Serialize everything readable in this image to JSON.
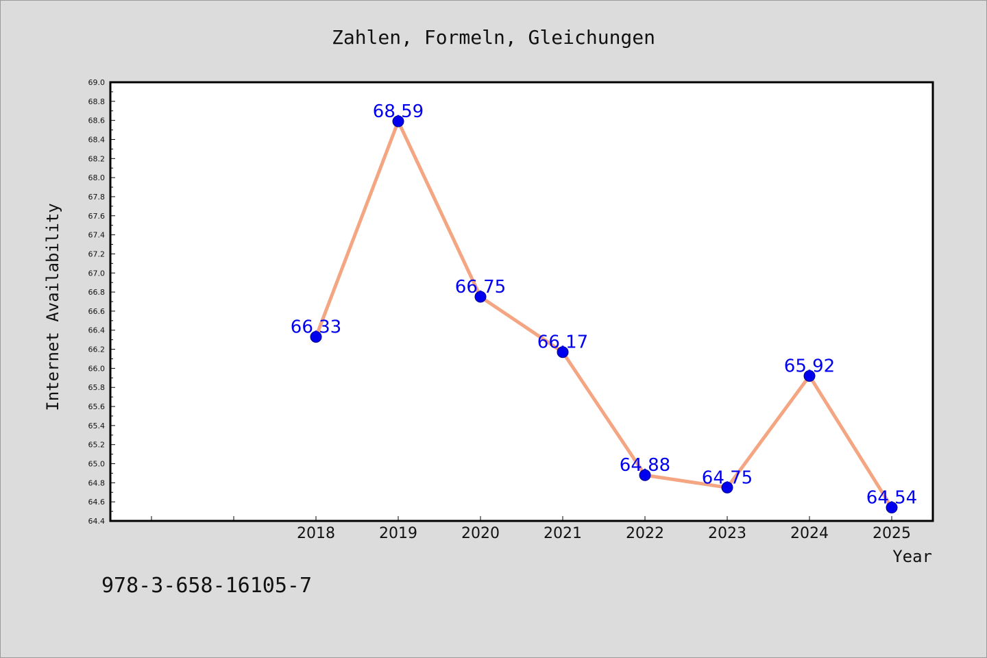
{
  "colors": {
    "background": "#dcdcdc",
    "plot_background": "#ffffff",
    "line": "#f4a582",
    "marker": "#0000ee",
    "data_label": "#0000ee"
  },
  "footer": {
    "isbn": "978-3-658-16105-7"
  },
  "chart_data": {
    "type": "line",
    "title": "Zahlen, Formeln, Gleichungen",
    "xlabel": "Year",
    "ylabel": "Internet Availability",
    "categories": [
      "",
      "",
      "2018",
      "2019",
      "2020",
      "2021",
      "2022",
      "2023",
      "2024",
      "2025"
    ],
    "x": [
      "2018",
      "2019",
      "2020",
      "2021",
      "2022",
      "2023",
      "2024",
      "2025"
    ],
    "series": [
      {
        "values": [
          66.33,
          68.59,
          66.75,
          66.17,
          64.88,
          64.75,
          65.92,
          64.54
        ]
      }
    ],
    "data_labels": [
      "66.33",
      "68.59",
      "66.75",
      "66.17",
      "64.88",
      "64.75",
      "65.92",
      "64.54"
    ],
    "ylim": [
      64.4,
      69.0
    ],
    "ytick_step": 0.2,
    "ytick_labels": [
      "64.4",
      "64.6",
      "64.8",
      "65.0",
      "65.2",
      "65.4",
      "65.6",
      "65.8",
      "66.0",
      "66.2",
      "66.4",
      "66.6",
      "66.8",
      "67.0",
      "67.2",
      "67.4",
      "67.6",
      "67.8",
      "68.0",
      "68.2",
      "68.4",
      "68.6",
      "68.8",
      "69.0"
    ],
    "grid": false,
    "legend": "none"
  }
}
